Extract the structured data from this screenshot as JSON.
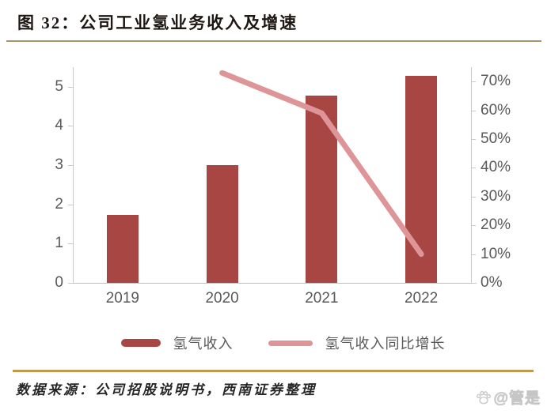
{
  "header": {
    "title": "图 32：公司工业氢业务收入及增速"
  },
  "chart_data": {
    "type": "bar",
    "subtype": "bar-line-combo",
    "categories": [
      "2019",
      "2020",
      "2021",
      "2022"
    ],
    "series": [
      {
        "name": "氢气收入",
        "type": "bar",
        "axis": "left",
        "color": "#a84643",
        "values": [
          1.73,
          3.0,
          4.78,
          5.28
        ]
      },
      {
        "name": "氢气收入同比增长",
        "type": "line",
        "axis": "right",
        "color": "#dd9598",
        "values": [
          null,
          0.73,
          0.59,
          0.1
        ]
      }
    ],
    "left_axis": {
      "tick_labels": [
        "0",
        "1",
        "2",
        "3",
        "4",
        "5"
      ],
      "tick_values": [
        0,
        1,
        2,
        3,
        4,
        5
      ],
      "range": [
        0,
        5.5
      ]
    },
    "right_axis": {
      "tick_labels": [
        "0%",
        "10%",
        "20%",
        "30%",
        "40%",
        "50%",
        "60%",
        "70%"
      ],
      "tick_values": [
        0,
        0.1,
        0.2,
        0.3,
        0.4,
        0.5,
        0.6,
        0.7
      ],
      "range": [
        0,
        0.75
      ]
    },
    "grid": false,
    "legend_position": "bottom",
    "title": "图 32：公司工业氢业务收入及增速"
  },
  "legend": {
    "bar_label": "氢气收入",
    "line_label": "氢气收入同比增长"
  },
  "footer": {
    "source": "数据来源：公司招股说明书，西南证券整理",
    "watermark": "@管是"
  },
  "colors": {
    "bar": "#a84643",
    "line": "#dd9598",
    "axis_text": "#595959",
    "title_text": "#1e1713",
    "divider_top": "#a6956a",
    "divider_bottom": "#c09a4e"
  }
}
